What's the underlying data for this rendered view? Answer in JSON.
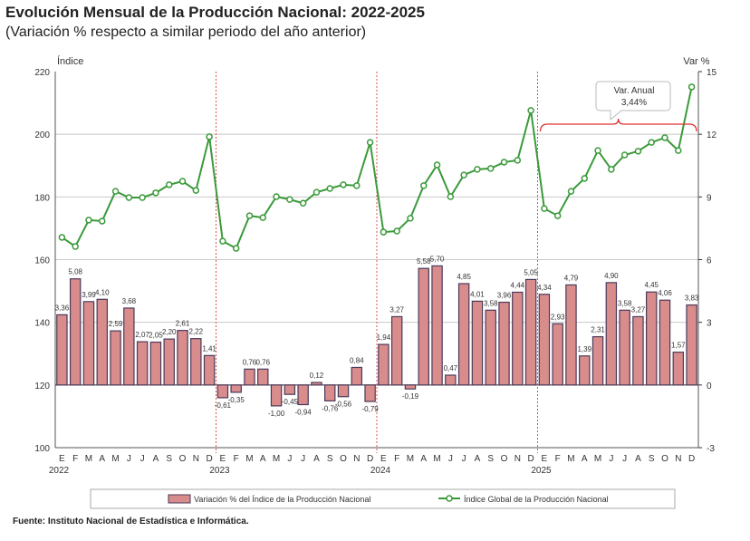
{
  "title": "Evolución Mensual de la Producción Nacional: 2022-2025",
  "subtitle": "(Variación % respecto a similar periodo del año anterior)",
  "source": "Fuente: Instituto Nacional de Estadística e Informática.",
  "chart_data": {
    "type": "bar+line",
    "ylabel_left": "Índice",
    "ylabel_right": "Var %",
    "ylim_left": [
      100,
      220
    ],
    "yticks_left": [
      100,
      120,
      140,
      160,
      180,
      200,
      220
    ],
    "ylim_right": [
      -3,
      15
    ],
    "yticks_right": [
      -3,
      0,
      3,
      6,
      9,
      12,
      15
    ],
    "grid": true,
    "month_labels": [
      "E",
      "F",
      "M",
      "A",
      "M",
      "J",
      "J",
      "A",
      "S",
      "O",
      "N",
      "D"
    ],
    "years": [
      "2022",
      "2023",
      "2024",
      "2025"
    ],
    "series": [
      {
        "name": "Variación % del Índice de la Producción Nacional",
        "type": "bar",
        "axis": "right",
        "color": "#d98c8c",
        "values": [
          3.36,
          5.08,
          3.99,
          4.1,
          2.59,
          3.68,
          2.07,
          2.05,
          2.2,
          2.61,
          2.22,
          1.41,
          -0.61,
          -0.35,
          0.76,
          0.76,
          -1.0,
          -0.45,
          -0.94,
          0.12,
          -0.76,
          -0.56,
          0.84,
          -0.79,
          1.94,
          3.27,
          -0.19,
          5.58,
          5.7,
          0.47,
          4.85,
          4.01,
          3.58,
          3.96,
          4.44,
          5.05,
          4.34,
          2.93,
          4.79,
          1.39,
          2.31,
          4.9,
          3.58,
          3.27,
          4.45,
          4.06,
          1.57,
          3.83
        ],
        "labels": [
          "3,36",
          "5,08",
          "3,99",
          "4,10",
          "2,59",
          "3,68",
          "2,07",
          "2,05",
          "2,20",
          "2,61",
          "2,22",
          "1,41",
          "-0,61",
          "-0,35",
          "0,76",
          "0,76",
          "-1,00",
          "-0,45",
          "-0,94",
          "0,12",
          "-0,76",
          "-0,56",
          "0,84",
          "-0,79",
          "1,94",
          "3,27",
          "-0,19",
          "5,58",
          "5,70",
          "0,47",
          "4,85",
          "4,01",
          "3,58",
          "3,96",
          "4,44",
          "5,05",
          "4,34",
          "2,93",
          "4,79",
          "1,39",
          "2,31",
          "4,90",
          "3,58",
          "3,27",
          "4,45",
          "4,06",
          "1,57",
          "3,83"
        ]
      },
      {
        "name": "Índice Global de la Producción Nacional",
        "type": "line",
        "axis": "left",
        "color": "#3a9a3a",
        "values": [
          167.1,
          164.2,
          172.6,
          172.3,
          181.8,
          179.8,
          179.8,
          181.3,
          183.9,
          185.0,
          182.1,
          199.2,
          165.9,
          163.6,
          174.0,
          173.4,
          180.1,
          179.2,
          178.0,
          181.5,
          182.7,
          183.9,
          183.6,
          197.4,
          168.8,
          169.1,
          173.2,
          183.6,
          190.2,
          180.1,
          187.0,
          188.8,
          189.1,
          191.1,
          191.7,
          207.6,
          176.3,
          174.0,
          181.8,
          185.9,
          194.8,
          188.8,
          193.4,
          194.6,
          197.4,
          198.9,
          194.8,
          215.1
        ]
      }
    ],
    "annotation": {
      "line1": "Var. Anual",
      "line2": "3,44%"
    }
  }
}
